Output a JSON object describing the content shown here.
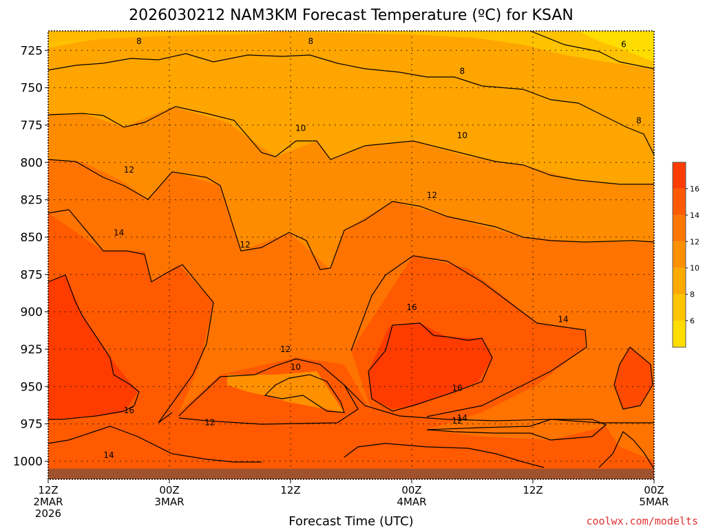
{
  "chart_data": {
    "type": "heatmap",
    "title": "2026030212 NAM3KM Forecast Temperature (ºC) for KSAN",
    "xlabel": "Forecast Time (UTC)",
    "ylabel": "",
    "ylim": [
      1012,
      712
    ],
    "y_ticks": [
      725,
      750,
      775,
      800,
      825,
      850,
      875,
      900,
      925,
      950,
      975,
      1000
    ],
    "x_ticks": [
      {
        "hour": 0,
        "lines": [
          "12Z",
          "2MAR",
          "2026"
        ]
      },
      {
        "hour": 12,
        "lines": [
          "00Z",
          "3MAR"
        ]
      },
      {
        "hour": 24,
        "lines": [
          "12Z"
        ]
      },
      {
        "hour": 36,
        "lines": [
          "00Z",
          "4MAR"
        ]
      },
      {
        "hour": 48,
        "lines": [
          "12Z"
        ]
      },
      {
        "hour": 60,
        "lines": [
          "00Z",
          "5MAR"
        ]
      }
    ],
    "xlim": [
      0,
      60
    ],
    "colorbar": {
      "levels": [
        4,
        6,
        8,
        10,
        12,
        14,
        16,
        18
      ],
      "colors": [
        "#ffdd00",
        "#ffc400",
        "#ffaa00",
        "#ff9000",
        "#ff7700",
        "#ff5a00",
        "#ff3c00"
      ],
      "tick_labels": [
        "6",
        "8",
        "10",
        "12",
        "14",
        "16"
      ]
    },
    "contour_levels": [
      6,
      8,
      10,
      12,
      14,
      16
    ],
    "contour_labels": [
      {
        "text": "8",
        "hour": 9.0,
        "p": 719
      },
      {
        "text": "8",
        "hour": 26.0,
        "p": 719
      },
      {
        "text": "6",
        "hour": 57.0,
        "p": 721
      },
      {
        "text": "8",
        "hour": 41.0,
        "p": 739
      },
      {
        "text": "8",
        "hour": 58.5,
        "p": 772
      },
      {
        "text": "10",
        "hour": 25.0,
        "p": 777
      },
      {
        "text": "10",
        "hour": 41.0,
        "p": 782
      },
      {
        "text": "12",
        "hour": 8.0,
        "p": 805
      },
      {
        "text": "12",
        "hour": 38.0,
        "p": 822
      },
      {
        "text": "12",
        "hour": 19.5,
        "p": 855
      },
      {
        "text": "14",
        "hour": 7.0,
        "p": 847
      },
      {
        "text": "16",
        "hour": 36.0,
        "p": 897
      },
      {
        "text": "14",
        "hour": 51.0,
        "p": 905
      },
      {
        "text": "12",
        "hour": 23.5,
        "p": 925
      },
      {
        "text": "10",
        "hour": 24.5,
        "p": 937
      },
      {
        "text": "16",
        "hour": 40.5,
        "p": 951
      },
      {
        "text": "16",
        "hour": 8.0,
        "p": 966
      },
      {
        "text": "14",
        "hour": 41.0,
        "p": 971
      },
      {
        "text": "12",
        "hour": 40.5,
        "p": 973
      },
      {
        "text": "12",
        "hour": 16.0,
        "p": 974
      },
      {
        "text": "14",
        "hour": 6.0,
        "p": 996
      }
    ],
    "surface_band_color": "#a0522d"
  },
  "credit": "coolwx.com/modelts"
}
